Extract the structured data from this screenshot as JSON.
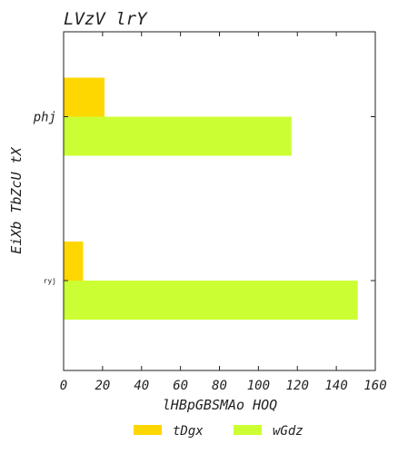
{
  "chart_data": {
    "type": "bar",
    "orientation": "horizontal",
    "title": "LVzV lrY",
    "xlabel": "lHBpGBSMAo HOQ",
    "ylabel": "EiXb TbZcU tX",
    "categories": [
      "phj",
      "ryj"
    ],
    "series": [
      {
        "name": "tDgx",
        "color": "#ffd700",
        "values": [
          21,
          10
        ]
      },
      {
        "name": "wGdz",
        "color": "#ccff33",
        "values": [
          117,
          151
        ]
      }
    ],
    "xlim": [
      0,
      160
    ],
    "xticks": [
      "0",
      "20",
      "40",
      "60",
      "80",
      "100",
      "120",
      "140",
      "160"
    ],
    "grid": false,
    "legend_position": "bottom-center"
  }
}
